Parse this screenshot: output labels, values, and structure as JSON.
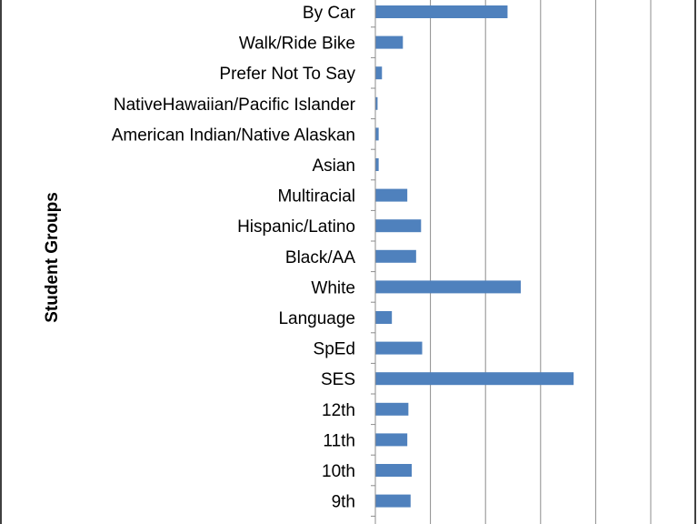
{
  "chart_data": {
    "type": "bar",
    "orientation": "horizontal",
    "ylabel": "Student Groups",
    "categories": [
      "By Car",
      "Walk/Ride Bike",
      "Prefer Not To Say",
      "NativeHawaiian/Pacific Islander",
      "American Indian/Native Alaskan",
      "Asian",
      "Multiracial",
      "Hispanic/Latino",
      "Black/AA",
      "White",
      "Language",
      "SpEd",
      "SES",
      "12th",
      "11th",
      "10th",
      "9th"
    ],
    "values": [
      24,
      5,
      1.2,
      0.4,
      0.6,
      0.6,
      5.8,
      8.3,
      7.4,
      26.4,
      3,
      8.5,
      36,
      6,
      5.8,
      6.6,
      6.4
    ],
    "xlim": [
      0,
      50
    ],
    "x_gridlines": [
      0,
      10,
      20,
      30,
      40,
      50
    ],
    "grid": true,
    "bar_color": "#4f81bd",
    "gridline_color": "#8c8c8c"
  }
}
